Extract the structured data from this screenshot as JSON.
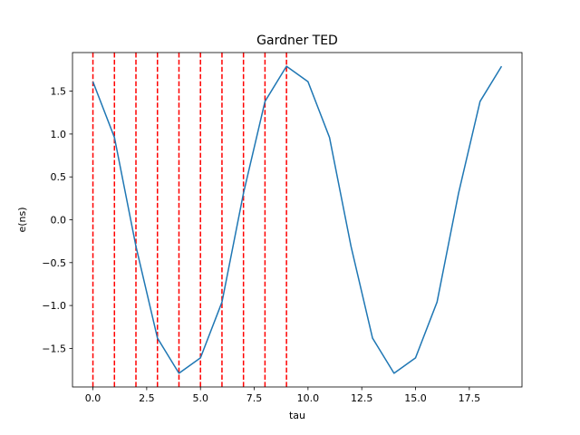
{
  "chart_data": {
    "type": "line",
    "title": "Gardner TED",
    "xlabel": "tau",
    "ylabel": "e(ns)",
    "xlim": [
      -0.95,
      19.95
    ],
    "ylim": [
      -1.95,
      1.95
    ],
    "xticks": [
      0,
      2.5,
      5,
      7.5,
      10,
      12.5,
      15,
      17.5
    ],
    "xtick_labels": [
      "0.0",
      "2.5",
      "5.0",
      "7.5",
      "10.0",
      "12.5",
      "15.0",
      "17.5"
    ],
    "yticks": [
      1.5,
      1.0,
      0.5,
      0.0,
      -0.5,
      -1.0,
      -1.5
    ],
    "ytick_labels": [
      "1.5",
      "1.0",
      "0.5",
      "0.0",
      "−0.5",
      "−1.0",
      "−1.5"
    ],
    "grid": false,
    "series": [
      {
        "color": "#1f77b4",
        "x": [
          0,
          1,
          2,
          3,
          4,
          5,
          6,
          7,
          8,
          9,
          10,
          11,
          12,
          13,
          14,
          15,
          16,
          17,
          18,
          19
        ],
        "y": [
          1.61,
          0.96,
          -0.31,
          -1.38,
          -1.79,
          -1.61,
          -0.96,
          0.31,
          1.38,
          1.79,
          1.61,
          0.96,
          -0.31,
          -1.38,
          -1.79,
          -1.61,
          -0.96,
          0.31,
          1.38,
          1.79
        ]
      }
    ],
    "vlines": {
      "color": "#ff0000",
      "style": "dashed",
      "x": [
        0,
        1,
        2,
        3,
        4,
        5,
        6,
        7,
        8,
        9
      ]
    }
  }
}
